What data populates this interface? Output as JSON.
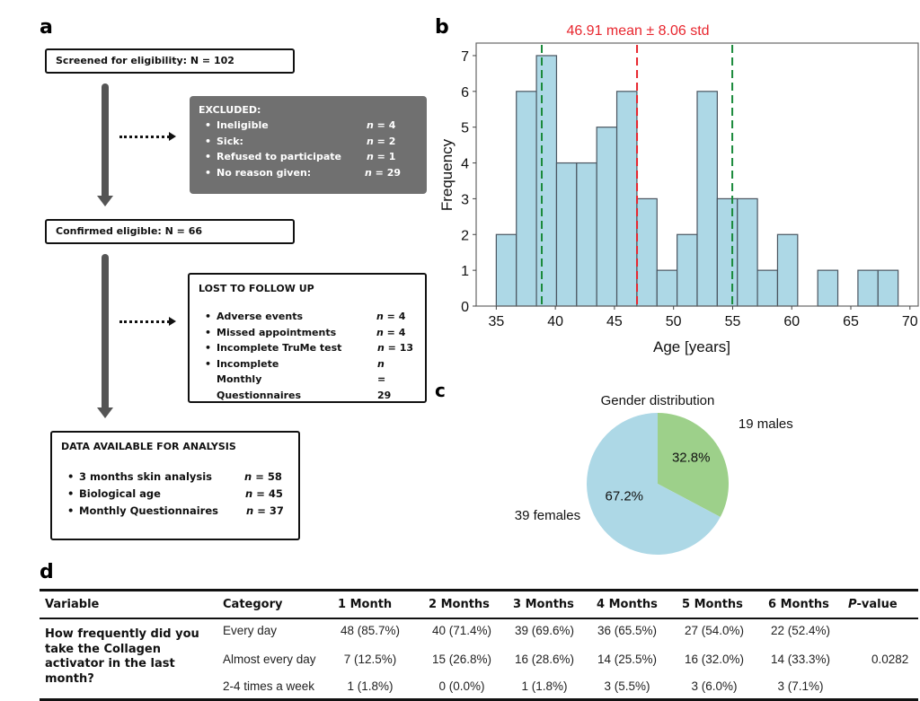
{
  "panels": {
    "a": "a",
    "b": "b",
    "c": "c",
    "d": "d"
  },
  "flowchart": {
    "screened": "Screened for eligibility: N = 102",
    "excluded": {
      "title": "EXCLUDED:",
      "items": [
        {
          "label": "Ineligible",
          "n": "4"
        },
        {
          "label": "Sick:",
          "n": "2"
        },
        {
          "label": "Refused to participate",
          "n": "1"
        },
        {
          "label": "No reason given:",
          "n": "29"
        }
      ]
    },
    "confirmed": "Confirmed eligible: N = 66",
    "lost": {
      "title": "LOST TO FOLLOW UP",
      "items": [
        {
          "label": "Adverse events",
          "n": "4"
        },
        {
          "label": "Missed appointments",
          "n": "4"
        },
        {
          "label": "Incomplete TruMe test",
          "n": "13"
        },
        {
          "label": "Incomplete Monthly Questionnaires",
          "n": "29"
        }
      ]
    },
    "available": {
      "title": "DATA AVAILABLE FOR ANALYSIS",
      "items": [
        {
          "label": "3 months skin analysis",
          "n": "58"
        },
        {
          "label": "Biological age",
          "n": "45"
        },
        {
          "label": "Monthly Questionnaires",
          "n": "37"
        }
      ]
    },
    "n_prefix": "n",
    "n_eq": " = "
  },
  "chart_data": [
    {
      "type": "bar",
      "subtype": "histogram",
      "title": "46.91 mean ± 8.06 std",
      "xlabel": "Age [years]",
      "ylabel": "Frequency",
      "bin_start": 35,
      "bin_width": 1.7,
      "bins": [
        35.0,
        36.7,
        38.4,
        40.1,
        41.8,
        43.5,
        45.2,
        46.9,
        48.6,
        50.3,
        52.0,
        53.7,
        55.4,
        57.1,
        58.8,
        60.5,
        62.2,
        63.9,
        65.6,
        67.3,
        69.0
      ],
      "values": [
        2,
        6,
        7,
        4,
        4,
        5,
        6,
        3,
        1,
        2,
        6,
        3,
        3,
        1,
        2,
        0,
        1,
        0,
        1,
        1
      ],
      "xlim": [
        33.3,
        70.7
      ],
      "ylim": [
        0,
        7.35
      ],
      "xticks": [
        35,
        40,
        45,
        50,
        55,
        60,
        65,
        70
      ],
      "yticks": [
        0,
        1,
        2,
        3,
        4,
        5,
        6,
        7
      ],
      "mean": 46.91,
      "std": 8.06,
      "lines": [
        {
          "name": "mean",
          "x": 46.91,
          "color": "#e8262e"
        },
        {
          "name": "mean-minus-std",
          "x": 38.85,
          "color": "#1a8a3a"
        },
        {
          "name": "mean-plus-std",
          "x": 54.97,
          "color": "#1a8a3a"
        }
      ],
      "bar_color": "#add8e6",
      "edge_color": "#4a5560",
      "title_color": "#e8262e",
      "grid": false
    },
    {
      "type": "pie",
      "title": "Gender distribution",
      "slices": [
        {
          "label": "19 males",
          "value": 19,
          "percent": "32.8%",
          "color": "#9dd08a"
        },
        {
          "label": "39 females",
          "value": 39,
          "percent": "67.2%",
          "color": "#add8e6"
        }
      ]
    }
  ],
  "table": {
    "headers": [
      "Variable",
      "Category",
      "1 Month",
      "2 Months",
      "3 Months",
      "4 Months",
      "5 Months",
      "6 Months",
      "P-value"
    ],
    "pvalue_prefix": "P",
    "pvalue_suffix": "-value",
    "variable": "How frequently did you take the Collagen activator in the last month?",
    "rows": [
      {
        "category": "Every day",
        "cells": [
          "48 (85.7%)",
          "40 (71.4%)",
          "39 (69.6%)",
          "36 (65.5%)",
          "27 (54.0%)",
          "22 (52.4%)"
        ]
      },
      {
        "category": "Almost every day",
        "cells": [
          "7 (12.5%)",
          "15 (26.8%)",
          "16 (28.6%)",
          "14 (25.5%)",
          "16 (32.0%)",
          "14 (33.3%)"
        ]
      },
      {
        "category": "2-4 times a week",
        "cells": [
          "1 (1.8%)",
          "0 (0.0%)",
          "1 (1.8%)",
          "3 (5.5%)",
          "3 (6.0%)",
          "3 (7.1%)"
        ]
      }
    ],
    "pvalue": "0.0282"
  }
}
